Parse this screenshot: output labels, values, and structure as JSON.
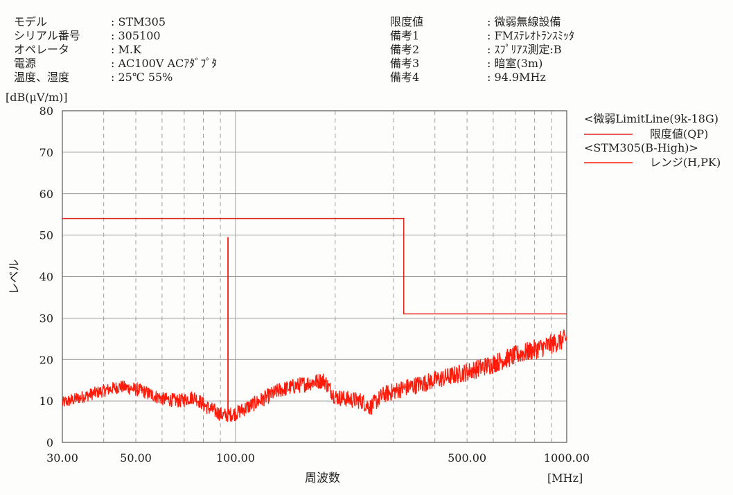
{
  "info_left": [
    {
      "label": "モデル",
      "value": ": STM305"
    },
    {
      "label": "シリアル番号",
      "value": ": 305100"
    },
    {
      "label": "オペレータ",
      "value": ": M.K"
    },
    {
      "label": "電源",
      "value": ": AC100V ACｱﾀﾞﾌﾟﾀ"
    },
    {
      "label": "温度、湿度",
      "value": ": 25℃ 55%"
    }
  ],
  "info_right": [
    {
      "label": "限度値",
      "value": ": 微弱無線設備"
    },
    {
      "label": "備考1",
      "value": ": FMｽﾃﾚｵﾄﾗﾝｽﾐｯﾀ"
    },
    {
      "label": "備考2",
      "value": ": ｽﾌﾟﾘｱｽ測定:B"
    },
    {
      "label": "備考3",
      "value": ": 暗室(3m)"
    },
    {
      "label": "備考4",
      "value": ": 94.9MHz"
    }
  ],
  "chart_data": {
    "type": "line",
    "xlabel": "周波数",
    "xunit": "[MHz]",
    "ylabel": "レベル",
    "yunit": "[dB(μV/m)]",
    "xscale": "log",
    "xlim": [
      30,
      1000
    ],
    "ylim": [
      0,
      80
    ],
    "yticks": [
      "0",
      "10",
      "20",
      "30",
      "40",
      "50",
      "60",
      "70",
      "80"
    ],
    "xticks": [
      {
        "v": 30,
        "t": "30.00"
      },
      {
        "v": 50,
        "t": "50.00"
      },
      {
        "v": 100,
        "t": "100.00"
      },
      {
        "v": 500,
        "t": "500.00"
      },
      {
        "v": 1000,
        "t": "1000.00"
      }
    ],
    "grid": true,
    "legend_position": "right",
    "legend": [
      {
        "group": "<微弱LimitLine(9k-18G)",
        "name": "限度値(QP)",
        "color": "#e0241c"
      },
      {
        "group": "<STM305(B-High)>",
        "name": "レンジ(H,PK)",
        "color": "#ff1a0a"
      }
    ],
    "series": [
      {
        "name": "限度値(QP)",
        "color": "#e0241c",
        "x": [
          30,
          322,
          322,
          1000
        ],
        "y": [
          54,
          54,
          31,
          31
        ]
      },
      {
        "name": "レンジ(H,PK)",
        "color": "#ff1a0a",
        "noise_db": 2.5,
        "x": [
          30,
          38,
          45,
          52,
          60,
          68,
          75,
          82,
          92,
          100,
          115,
          135,
          150,
          170,
          185,
          200,
          215,
          240,
          255,
          280,
          320,
          400,
          500,
          600,
          700,
          850,
          1000
        ],
        "y": [
          9.5,
          12,
          13.5,
          12.5,
          10.5,
          10,
          11,
          8.5,
          6.5,
          7,
          9.5,
          12.5,
          13.5,
          14.5,
          15,
          11,
          10.5,
          10,
          8.5,
          11.5,
          13,
          15,
          17,
          19,
          21,
          23,
          25
        ],
        "peak": {
          "x": 94.9,
          "y": 49.5
        }
      }
    ]
  }
}
